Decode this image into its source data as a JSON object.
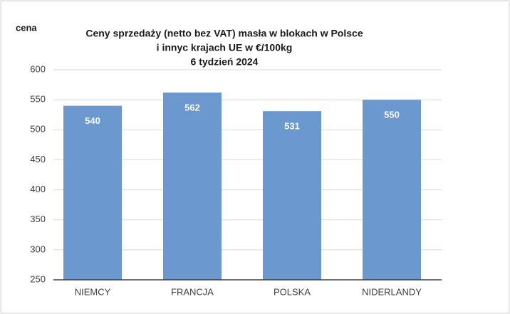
{
  "chart_data": {
    "type": "bar",
    "title": [
      "Ceny sprzedaży (netto bez VAT) masła w blokach w Polsce",
      "i  innyc krajach UE w €/100kg",
      "6 tydzień 2024"
    ],
    "y_label": "cena",
    "categories": [
      "NIEMCY",
      "FRANCJA",
      "POLSKA",
      "NIDERLANDY"
    ],
    "values": [
      540,
      562,
      531,
      550
    ],
    "color": "#6a98cf",
    "ylim": [
      250,
      600
    ],
    "yticks": [
      250,
      300,
      350,
      400,
      450,
      500,
      550,
      600
    ],
    "grid": true
  }
}
